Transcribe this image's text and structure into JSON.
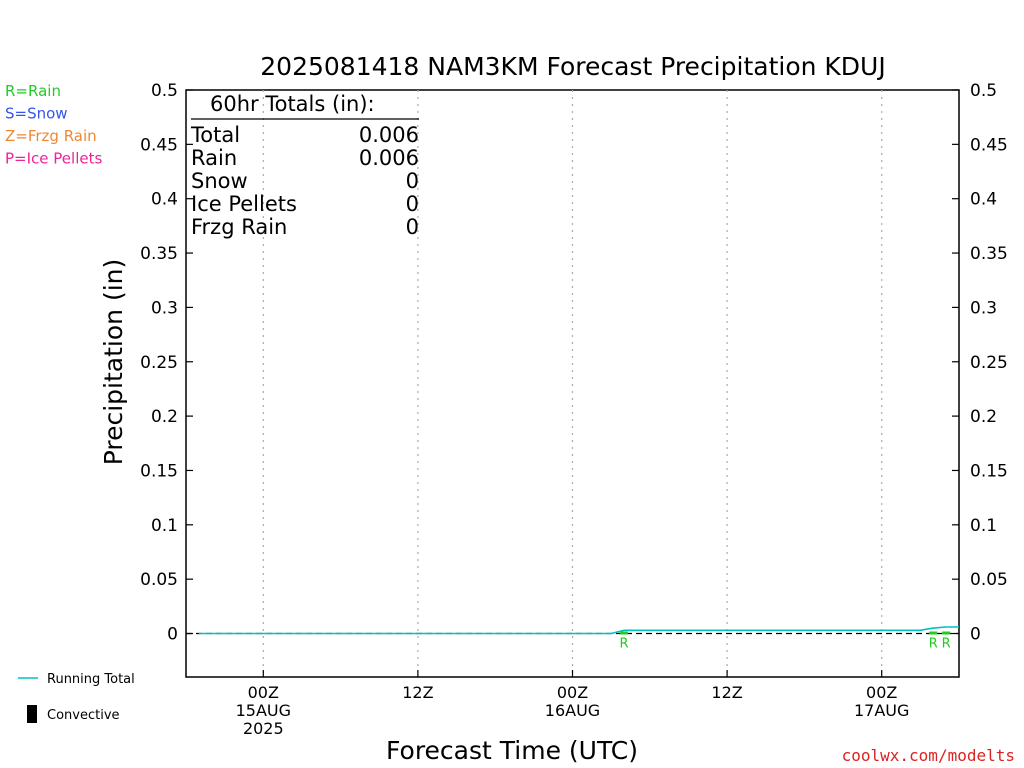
{
  "chart_data": {
    "type": "line",
    "title": "2025081418 NAM3KM Forecast Precipitation KDUJ",
    "xlabel": "Forecast Time (UTC)",
    "ylabel": "Precipitation (in)",
    "ylim": [
      -0.04,
      0.5
    ],
    "yticks": [
      "0",
      "0.05",
      "0.1",
      "0.15",
      "0.2",
      "0.25",
      "0.3",
      "0.35",
      "0.4",
      "0.45",
      "0.5"
    ],
    "xlim_hours": [
      -6,
      54
    ],
    "xticks": [
      {
        "hour": 0,
        "lines": [
          "00Z",
          "15AUG",
          "2025"
        ]
      },
      {
        "hour": 12,
        "lines": [
          "12Z"
        ]
      },
      {
        "hour": 24,
        "lines": [
          "00Z",
          "16AUG"
        ]
      },
      {
        "hour": 36,
        "lines": [
          "12Z"
        ]
      },
      {
        "hour": 48,
        "lines": [
          "00Z",
          "17AUG"
        ]
      }
    ],
    "grid": true,
    "series": [
      {
        "name": "Running Total",
        "color": "#00c0c0",
        "points": [
          [
            -5,
            0
          ],
          [
            27,
            0
          ],
          [
            28,
            0.003
          ],
          [
            51,
            0.003
          ],
          [
            52,
            0.005
          ],
          [
            53,
            0.006
          ],
          [
            54,
            0.006
          ]
        ]
      }
    ],
    "precip_markers": [
      {
        "hour": 28,
        "label": "R",
        "color": "#22cc22"
      },
      {
        "hour": 52,
        "label": "R",
        "color": "#22cc22"
      },
      {
        "hour": 53,
        "label": "R",
        "color": "#22cc22"
      }
    ],
    "totals_box": {
      "heading": "60hr Totals (in):",
      "rows": [
        {
          "label": "Total",
          "value": "0.006"
        },
        {
          "label": "Rain",
          "value": "0.006"
        },
        {
          "label": "Snow",
          "value": "0"
        },
        {
          "label": "Ice Pellets",
          "value": "0"
        },
        {
          "label": "Frzg Rain",
          "value": "0"
        }
      ]
    },
    "ptype_legend": [
      {
        "text": "R=Rain",
        "color": "#22cc22"
      },
      {
        "text": "S=Snow",
        "color": "#3355ee"
      },
      {
        "text": "Z=Frzg Rain",
        "color": "#ee8833"
      },
      {
        "text": "P=Ice Pellets",
        "color": "#ee2299"
      }
    ],
    "line_legend": [
      {
        "text": "Running Total",
        "kind": "line",
        "color": "#00c0c0"
      },
      {
        "text": "Convective",
        "kind": "bar",
        "color": "#000000"
      }
    ],
    "credit": {
      "text": "coolwx.com/modelts",
      "color": "#dd2222"
    }
  }
}
